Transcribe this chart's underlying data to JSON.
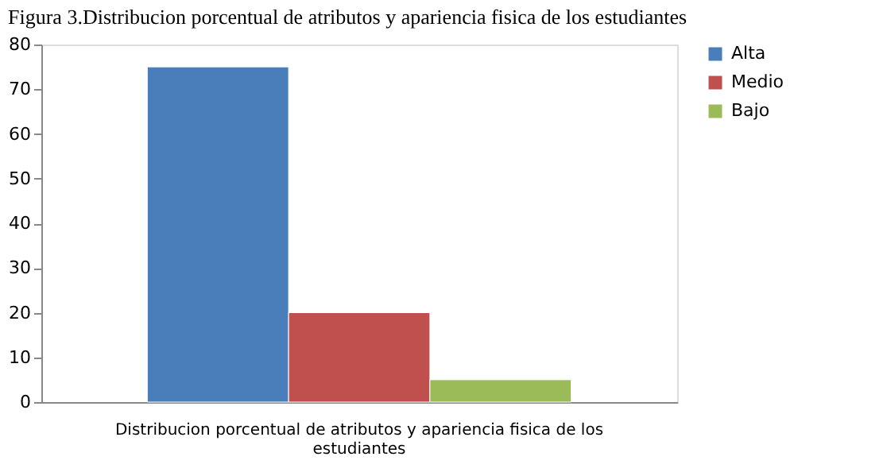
{
  "chart_data": {
    "type": "bar",
    "title": "Figura 3.Distribucion porcentual de atributos y apariencia fisica de los estudiantes",
    "categories": [
      "Distribucion porcentual de atributos y apariencia fisica de los estudiantes"
    ],
    "series": [
      {
        "name": "Alta",
        "color": "#4a7ebb",
        "values": [
          75
        ]
      },
      {
        "name": "Medio",
        "color": "#c0504d",
        "values": [
          20
        ]
      },
      {
        "name": "Bajo",
        "color": "#9bbb59",
        "values": [
          5
        ]
      }
    ],
    "ylim": [
      0,
      80
    ],
    "yticks": [
      0,
      10,
      20,
      30,
      40,
      50,
      60,
      70,
      80
    ],
    "grid": false,
    "legend": "right"
  }
}
